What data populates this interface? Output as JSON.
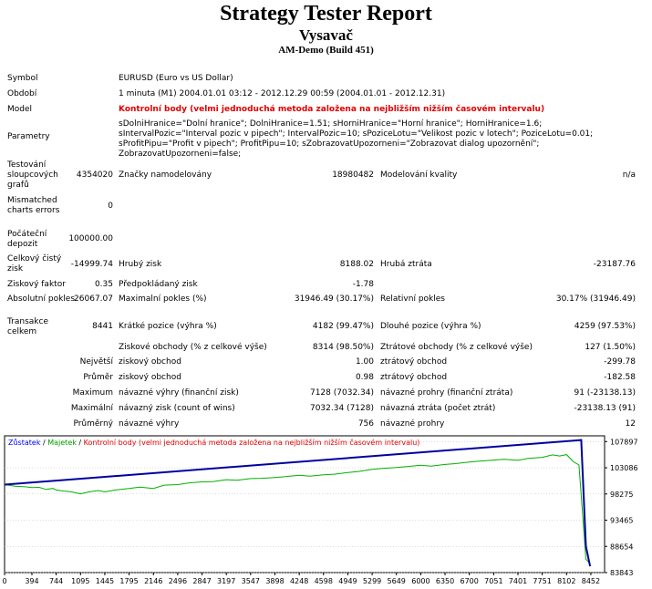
{
  "header": {
    "title": "Strategy Tester Report",
    "expert": "Vysavač",
    "server": "AM-Demo (Build 451)"
  },
  "report": {
    "symbol_label": "Symbol",
    "symbol": "EURUSD (Euro vs US Dollar)",
    "period_label": "Období",
    "period": "1 minuta (M1) 2004.01.01 03:12 - 2012.12.29 00:59 (2004.01.01 - 2012.12.31)",
    "model_label": "Model",
    "model": "Kontrolní body (velmi jednoduchá metoda založena na nejbližším nižším časovém intervalu)",
    "params_label": "Parametry",
    "params": "sDolniHranice=\"Dolní hranice\"; DolniHranice=1.51; sHorniHranice=\"Horní hranice\"; HorniHranice=1.6; sIntervalPozic=\"Interval pozic v pipech\"; IntervalPozic=10; sPoziceLotu=\"Velikost pozic v lotech\"; PoziceLotu=0.01; sProfitPipu=\"Profit v pipech\"; ProfitPipu=10; sZobrazovatUpozorneni=\"Zobrazovat dialog upozornění\"; ZobrazovatUpozorneni=false;",
    "bars_label": "Testování sloupcových grafů",
    "bars": "4354020",
    "ticks_label": "Značky namodelovány",
    "ticks": "18980482",
    "quality_label": "Modelování kvality",
    "quality": "n/a",
    "mismatch_label": "Mismatched charts errors",
    "mismatch": "0",
    "deposit_label": "Počáteční depozit",
    "deposit": "100000.00",
    "net_label": "Celkový čistý zisk",
    "net": "-14999.74",
    "gross_profit_label": "Hrubý zisk",
    "gross_profit": "8188.02",
    "gross_loss_label": "Hrubá ztráta",
    "gross_loss": "-23187.76",
    "pf_label": "Ziskový faktor",
    "pf": "0.35",
    "payoff_label": "Předpokládaný zisk",
    "payoff": "-1.78",
    "abs_dd_label": "Absolutní pokles",
    "abs_dd": "26067.07",
    "max_dd_label": "Maximalní pokles (%)",
    "max_dd": "31946.49 (30.17%)",
    "rel_dd_label": "Relativní pokles",
    "rel_dd": "30.17% (31946.49)",
    "trades_label": "Transakce celkem",
    "trades": "8441",
    "short_label": "Krátké pozice (výhra %)",
    "short": "4182 (99.47%)",
    "long_label": "Dlouhé pozice (výhra %)",
    "long": "4259 (97.53%)",
    "profit_trades_label": "Ziskové obchody (% z celkové výše)",
    "profit_trades": "8314 (98.50%)",
    "loss_trades_label": "Ztrátové obchody (% z celkové výše)",
    "loss_trades": "127 (1.50%)",
    "largest_label": "Největší",
    "largest_profit_label": "ziskový obchod",
    "largest_profit": "1.00",
    "largest_loss_label": "ztrátový obchod",
    "largest_loss": "-299.78",
    "average_label": "Průměr",
    "average_profit_label": "ziskový obchod",
    "average_profit": "0.98",
    "average_loss_label": "ztrátový obchod",
    "average_loss": "-182.58",
    "maximum_label": "Maximum",
    "max_cons_wins_label": "návazné výhry (finanční zisk)",
    "max_cons_wins": "7128 (7032.34)",
    "max_cons_losses_label": "návazné prohry (finanční ztráta)",
    "max_cons_losses": "91 (-23138.13)",
    "maximal_label": "Maximální",
    "maximal_wins_label": "návazný zisk (count of wins)",
    "maximal_wins": "7032.34 (7128)",
    "maximal_losses_label": "návazná ztráta (počet ztrát)",
    "maximal_losses": "-23138.13 (91)",
    "avg_label": "Průměrný",
    "avg_wins_label": "návazné výhry",
    "avg_wins": "756",
    "avg_losses_label": "návazné prohry",
    "avg_losses": "12"
  },
  "legend": {
    "balance": "Zůstatek",
    "sep1": " / ",
    "equity": "Majetek",
    "sep2": " / ",
    "model": "Kontrolní body (velmi jednoduchá metoda založena na nejbližším nižším časovém intervalu)"
  },
  "chart_data": {
    "type": "line",
    "ylim": [
      83843,
      108950
    ],
    "xlim": [
      0,
      8650
    ],
    "y_ticks": [
      "107897",
      "103086",
      "98275",
      "93465",
      "88654",
      "83843"
    ],
    "x_ticks": [
      "0",
      "394",
      "744",
      "1095",
      "1445",
      "1795",
      "2146",
      "2496",
      "2847",
      "3197",
      "3547",
      "3898",
      "4248",
      "4598",
      "4949",
      "5299",
      "5649",
      "6000",
      "6350",
      "6700",
      "7051",
      "7401",
      "7751",
      "8102",
      "8452"
    ],
    "colors": {
      "balance": "#0000a0",
      "equity": "#00b000",
      "grid": "#b8b8b8",
      "legend_balance": "#0000ff",
      "legend_equity": "#00a000",
      "legend_model": "#e00000"
    },
    "series": [
      {
        "name": "Zůstatek",
        "x": [
          0,
          8314,
          8380,
          8441
        ],
        "y": [
          100000,
          108180,
          88700,
          85000
        ]
      },
      {
        "name": "Majetek",
        "x": [
          0,
          150,
          300,
          394,
          500,
          600,
          700,
          744,
          850,
          950,
          1095,
          1200,
          1350,
          1445,
          1600,
          1795,
          1950,
          2146,
          2300,
          2496,
          2650,
          2847,
          3000,
          3197,
          3350,
          3547,
          3700,
          3898,
          4050,
          4248,
          4400,
          4598,
          4750,
          4949,
          5100,
          5299,
          5450,
          5649,
          5800,
          6000,
          6150,
          6350,
          6500,
          6700,
          6850,
          7051,
          7200,
          7401,
          7550,
          7751,
          7900,
          8000,
          8102,
          8200,
          8280,
          8330,
          8380,
          8441
        ],
        "y": [
          100000,
          99700,
          99600,
          99450,
          99500,
          99100,
          99300,
          99000,
          98800,
          98700,
          98300,
          98600,
          98900,
          98650,
          99000,
          99300,
          99550,
          99300,
          99900,
          100000,
          100300,
          100500,
          100550,
          100900,
          100800,
          101100,
          101150,
          101300,
          101450,
          101700,
          101550,
          101800,
          101900,
          102200,
          102400,
          102800,
          102950,
          103150,
          103300,
          103550,
          103400,
          103700,
          103850,
          104150,
          104300,
          104500,
          104650,
          104450,
          104800,
          105000,
          105450,
          105250,
          105500,
          104200,
          103600,
          95000,
          86300,
          85500
        ]
      }
    ]
  }
}
